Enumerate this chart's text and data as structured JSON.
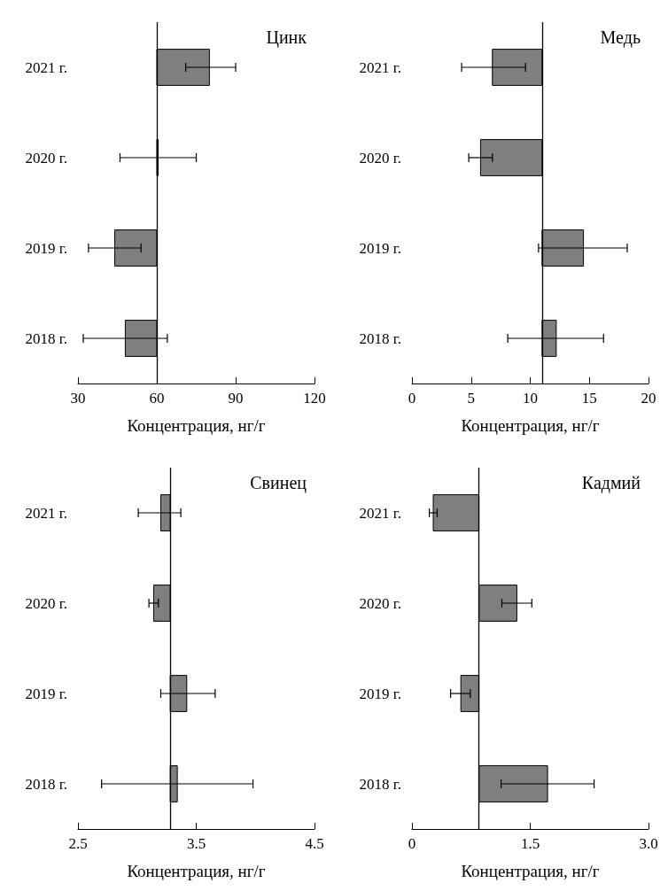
{
  "chart_data": [
    {
      "type": "bar",
      "orientation": "horizontal",
      "annotations": [
        "Цинк"
      ],
      "xlabel": "Концентрация, нг/г",
      "categories": [
        "2021 г.",
        "2020 г.",
        "2019 г.",
        "2018 г."
      ],
      "base": [
        60,
        60,
        60,
        60
      ],
      "ref_lines": [
        {
          "axis": "x",
          "value": 60
        }
      ],
      "values": [
        20,
        0,
        -16,
        -12
      ],
      "errors": [
        [
          71,
          90
        ],
        [
          46,
          75
        ],
        [
          34,
          54
        ],
        [
          32,
          64
        ]
      ],
      "color": "#7f7f7f",
      "xlim": [
        30,
        120
      ],
      "xticks": [
        30,
        60,
        90,
        120
      ],
      "grid": false
    },
    {
      "type": "bar",
      "orientation": "horizontal",
      "annotations": [
        "Медь"
      ],
      "xlabel": "Концентрация, нг/г",
      "categories": [
        "2021 г.",
        "2020 г.",
        "2019 г.",
        "2018 г."
      ],
      "base": [
        11,
        11,
        11,
        11
      ],
      "ref_lines": [
        {
          "axis": "x",
          "value": 11
        }
      ],
      "values": [
        -4.2,
        -5.2,
        3.5,
        1.2
      ],
      "errors": [
        [
          4.2,
          9.6
        ],
        [
          4.8,
          6.8
        ],
        [
          10.7,
          18.2
        ],
        [
          8.1,
          16.2
        ]
      ],
      "color": "#7f7f7f",
      "xlim": [
        0,
        20
      ],
      "xticks": [
        0,
        5,
        10,
        15,
        20
      ],
      "grid": false
    },
    {
      "type": "bar",
      "orientation": "horizontal",
      "annotations": [
        "Свинец"
      ],
      "xlabel": "Концентрация, нг/г",
      "categories": [
        "2021 г.",
        "2020 г.",
        "2019 г.",
        "2018 г."
      ],
      "base": [
        3.28,
        3.28,
        3.28,
        3.28
      ],
      "ref_lines": [
        {
          "axis": "x",
          "value": 3.28
        }
      ],
      "values": [
        -0.08,
        -0.14,
        0.14,
        0.06
      ],
      "errors": [
        [
          3.01,
          3.37
        ],
        [
          3.1,
          3.18
        ],
        [
          3.2,
          3.66
        ],
        [
          2.7,
          3.98
        ]
      ],
      "color": "#7f7f7f",
      "xlim": [
        2.5,
        4.5
      ],
      "xticks": [
        2.5,
        3.5,
        4.5
      ],
      "grid": false
    },
    {
      "type": "bar",
      "orientation": "horizontal",
      "annotations": [
        "Кадмий"
      ],
      "xlabel": "Концентрация, нг/г",
      "categories": [
        "2021 г.",
        "2020 г.",
        "2019 г.",
        "2018 г."
      ],
      "base": [
        0.85,
        0.85,
        0.85,
        0.85
      ],
      "ref_lines": [
        {
          "axis": "x",
          "value": 0.85
        }
      ],
      "values": [
        -0.58,
        0.48,
        -0.23,
        0.87
      ],
      "errors": [
        [
          0.22,
          0.32
        ],
        [
          1.14,
          1.52
        ],
        [
          0.49,
          0.74
        ],
        [
          1.13,
          2.31
        ]
      ],
      "color": "#7f7f7f",
      "xlim": [
        0,
        3
      ],
      "xticks": [
        0,
        {
          "value": 1.5,
          "label": "1.5"
        },
        {
          "value": 3,
          "label": "3.0"
        }
      ],
      "grid": false
    }
  ]
}
